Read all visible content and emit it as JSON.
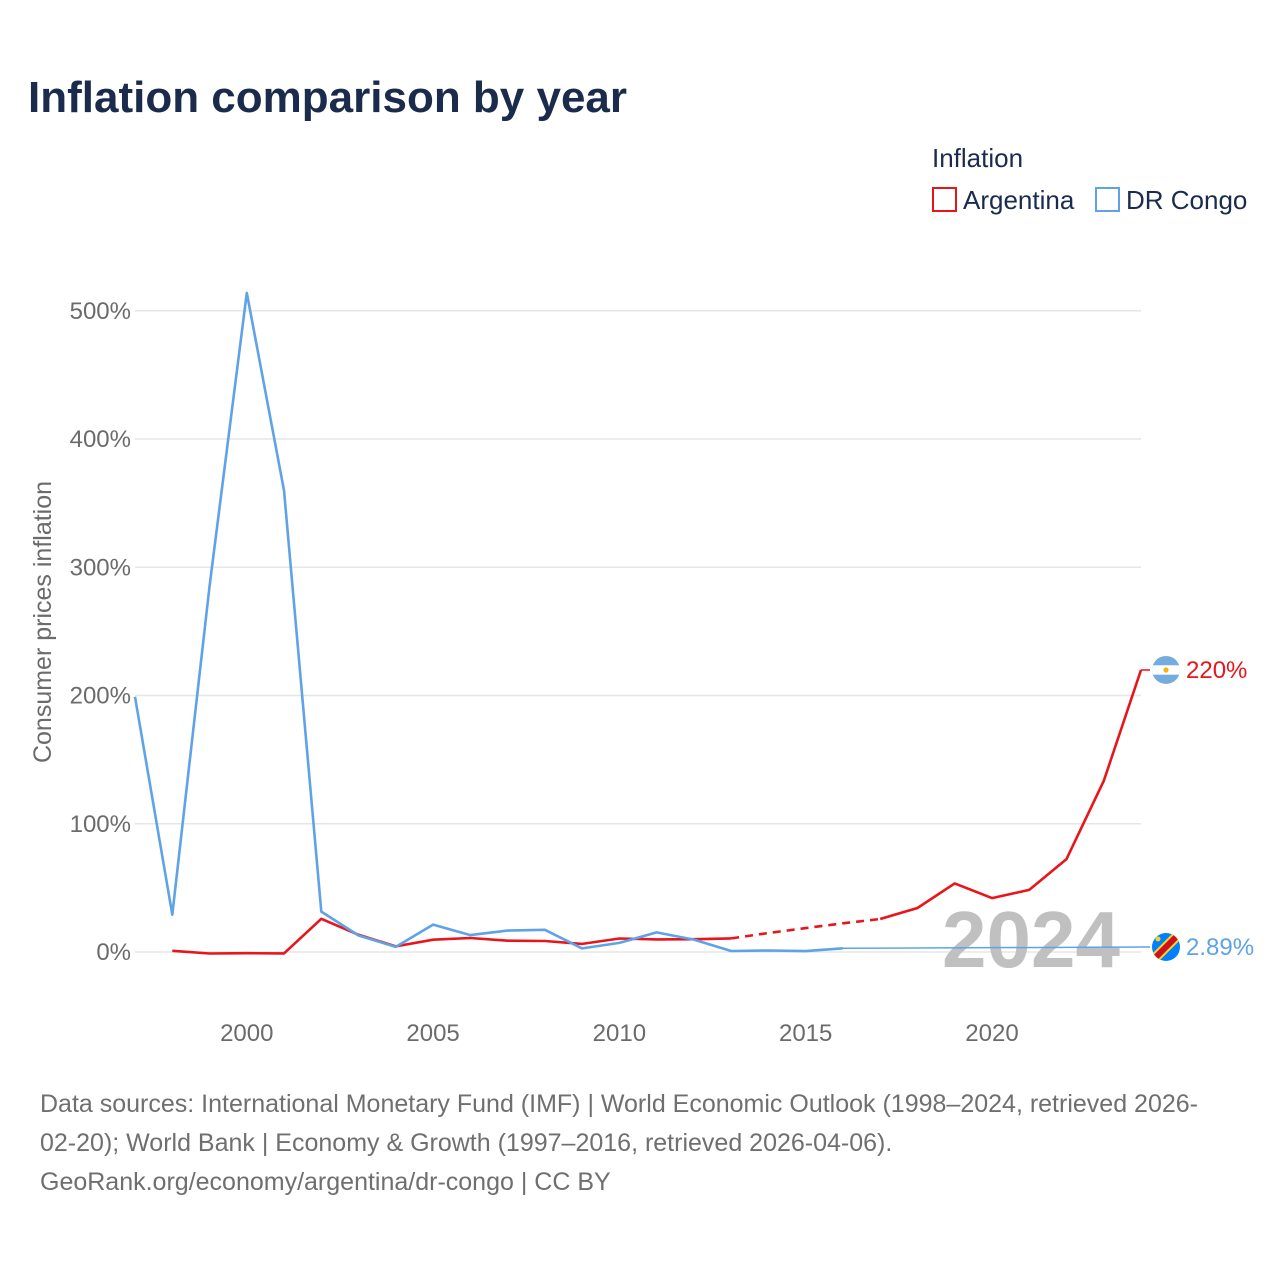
{
  "chart_data": {
    "type": "line",
    "title": "Inflation comparison by year",
    "legend": {
      "title": "Inflation",
      "position": "top-right"
    },
    "ylabel": "Consumer prices inflation",
    "xlabel": "",
    "xlim": [
      1997,
      2024
    ],
    "ylim": [
      -20,
      520
    ],
    "yticks": [
      {
        "value": 0,
        "label": "0%"
      },
      {
        "value": 100,
        "label": "100%"
      },
      {
        "value": 200,
        "label": "200%"
      },
      {
        "value": 300,
        "label": "300%"
      },
      {
        "value": 400,
        "label": "400%"
      },
      {
        "value": 500,
        "label": "500%"
      }
    ],
    "xticks": [
      {
        "value": 2000,
        "label": "2000"
      },
      {
        "value": 2005,
        "label": "2005"
      },
      {
        "value": 2010,
        "label": "2010"
      },
      {
        "value": 2015,
        "label": "2015"
      },
      {
        "value": 2020,
        "label": "2020"
      }
    ],
    "year_watermark": "2024",
    "series": [
      {
        "name": "Argentina",
        "color": "#e8151b",
        "end_label": "220%",
        "flag": "argentina-flag-icon",
        "dashed_range": [
          2013,
          2017
        ],
        "points": [
          [
            1998,
            0.9
          ],
          [
            1999,
            -1.2
          ],
          [
            2000,
            -0.9
          ],
          [
            2001,
            -1.1
          ],
          [
            2002,
            25.9
          ],
          [
            2003,
            13.4
          ],
          [
            2004,
            4.4
          ],
          [
            2005,
            9.6
          ],
          [
            2006,
            10.9
          ],
          [
            2007,
            8.8
          ],
          [
            2008,
            8.6
          ],
          [
            2009,
            6.3
          ],
          [
            2010,
            10.5
          ],
          [
            2011,
            9.8
          ],
          [
            2012,
            10.0
          ],
          [
            2013,
            10.6
          ],
          [
            2014,
            14.8
          ],
          [
            2015,
            18.6
          ],
          [
            2016,
            22.4
          ],
          [
            2017,
            25.7
          ],
          [
            2018,
            34.3
          ],
          [
            2019,
            53.5
          ],
          [
            2020,
            42.0
          ],
          [
            2021,
            48.4
          ],
          [
            2022,
            72.4
          ],
          [
            2023,
            133.5
          ],
          [
            2024,
            219.9
          ]
        ]
      },
      {
        "name": "DR Congo",
        "color": "#5fa3e6",
        "end_label": "2.89%",
        "flag": "dr-congo-flag-icon",
        "points": [
          [
            1997,
            199
          ],
          [
            1998,
            29.1
          ],
          [
            1999,
            284.9
          ],
          [
            2000,
            513.9
          ],
          [
            2001,
            359.9
          ],
          [
            2002,
            31.5
          ],
          [
            2003,
            12.9
          ],
          [
            2004,
            4.0
          ],
          [
            2005,
            21.4
          ],
          [
            2006,
            13.2
          ],
          [
            2007,
            16.7
          ],
          [
            2008,
            17.3
          ],
          [
            2009,
            2.8
          ],
          [
            2010,
            7.1
          ],
          [
            2011,
            15.3
          ],
          [
            2012,
            9.7
          ],
          [
            2013,
            0.8
          ],
          [
            2014,
            1.2
          ],
          [
            2015,
            0.7
          ],
          [
            2016,
            2.89
          ]
        ]
      }
    ]
  },
  "footer": {
    "line1": "Data sources: International Monetary Fund (IMF) | World Economic Outlook (1998–2024, retrieved 2026-",
    "line2": "02-20); World Bank | Economy & Growth (1997–2016, retrieved 2026-04-06).",
    "line3": "GeoRank.org/economy/argentina/dr-congo | CC BY"
  }
}
